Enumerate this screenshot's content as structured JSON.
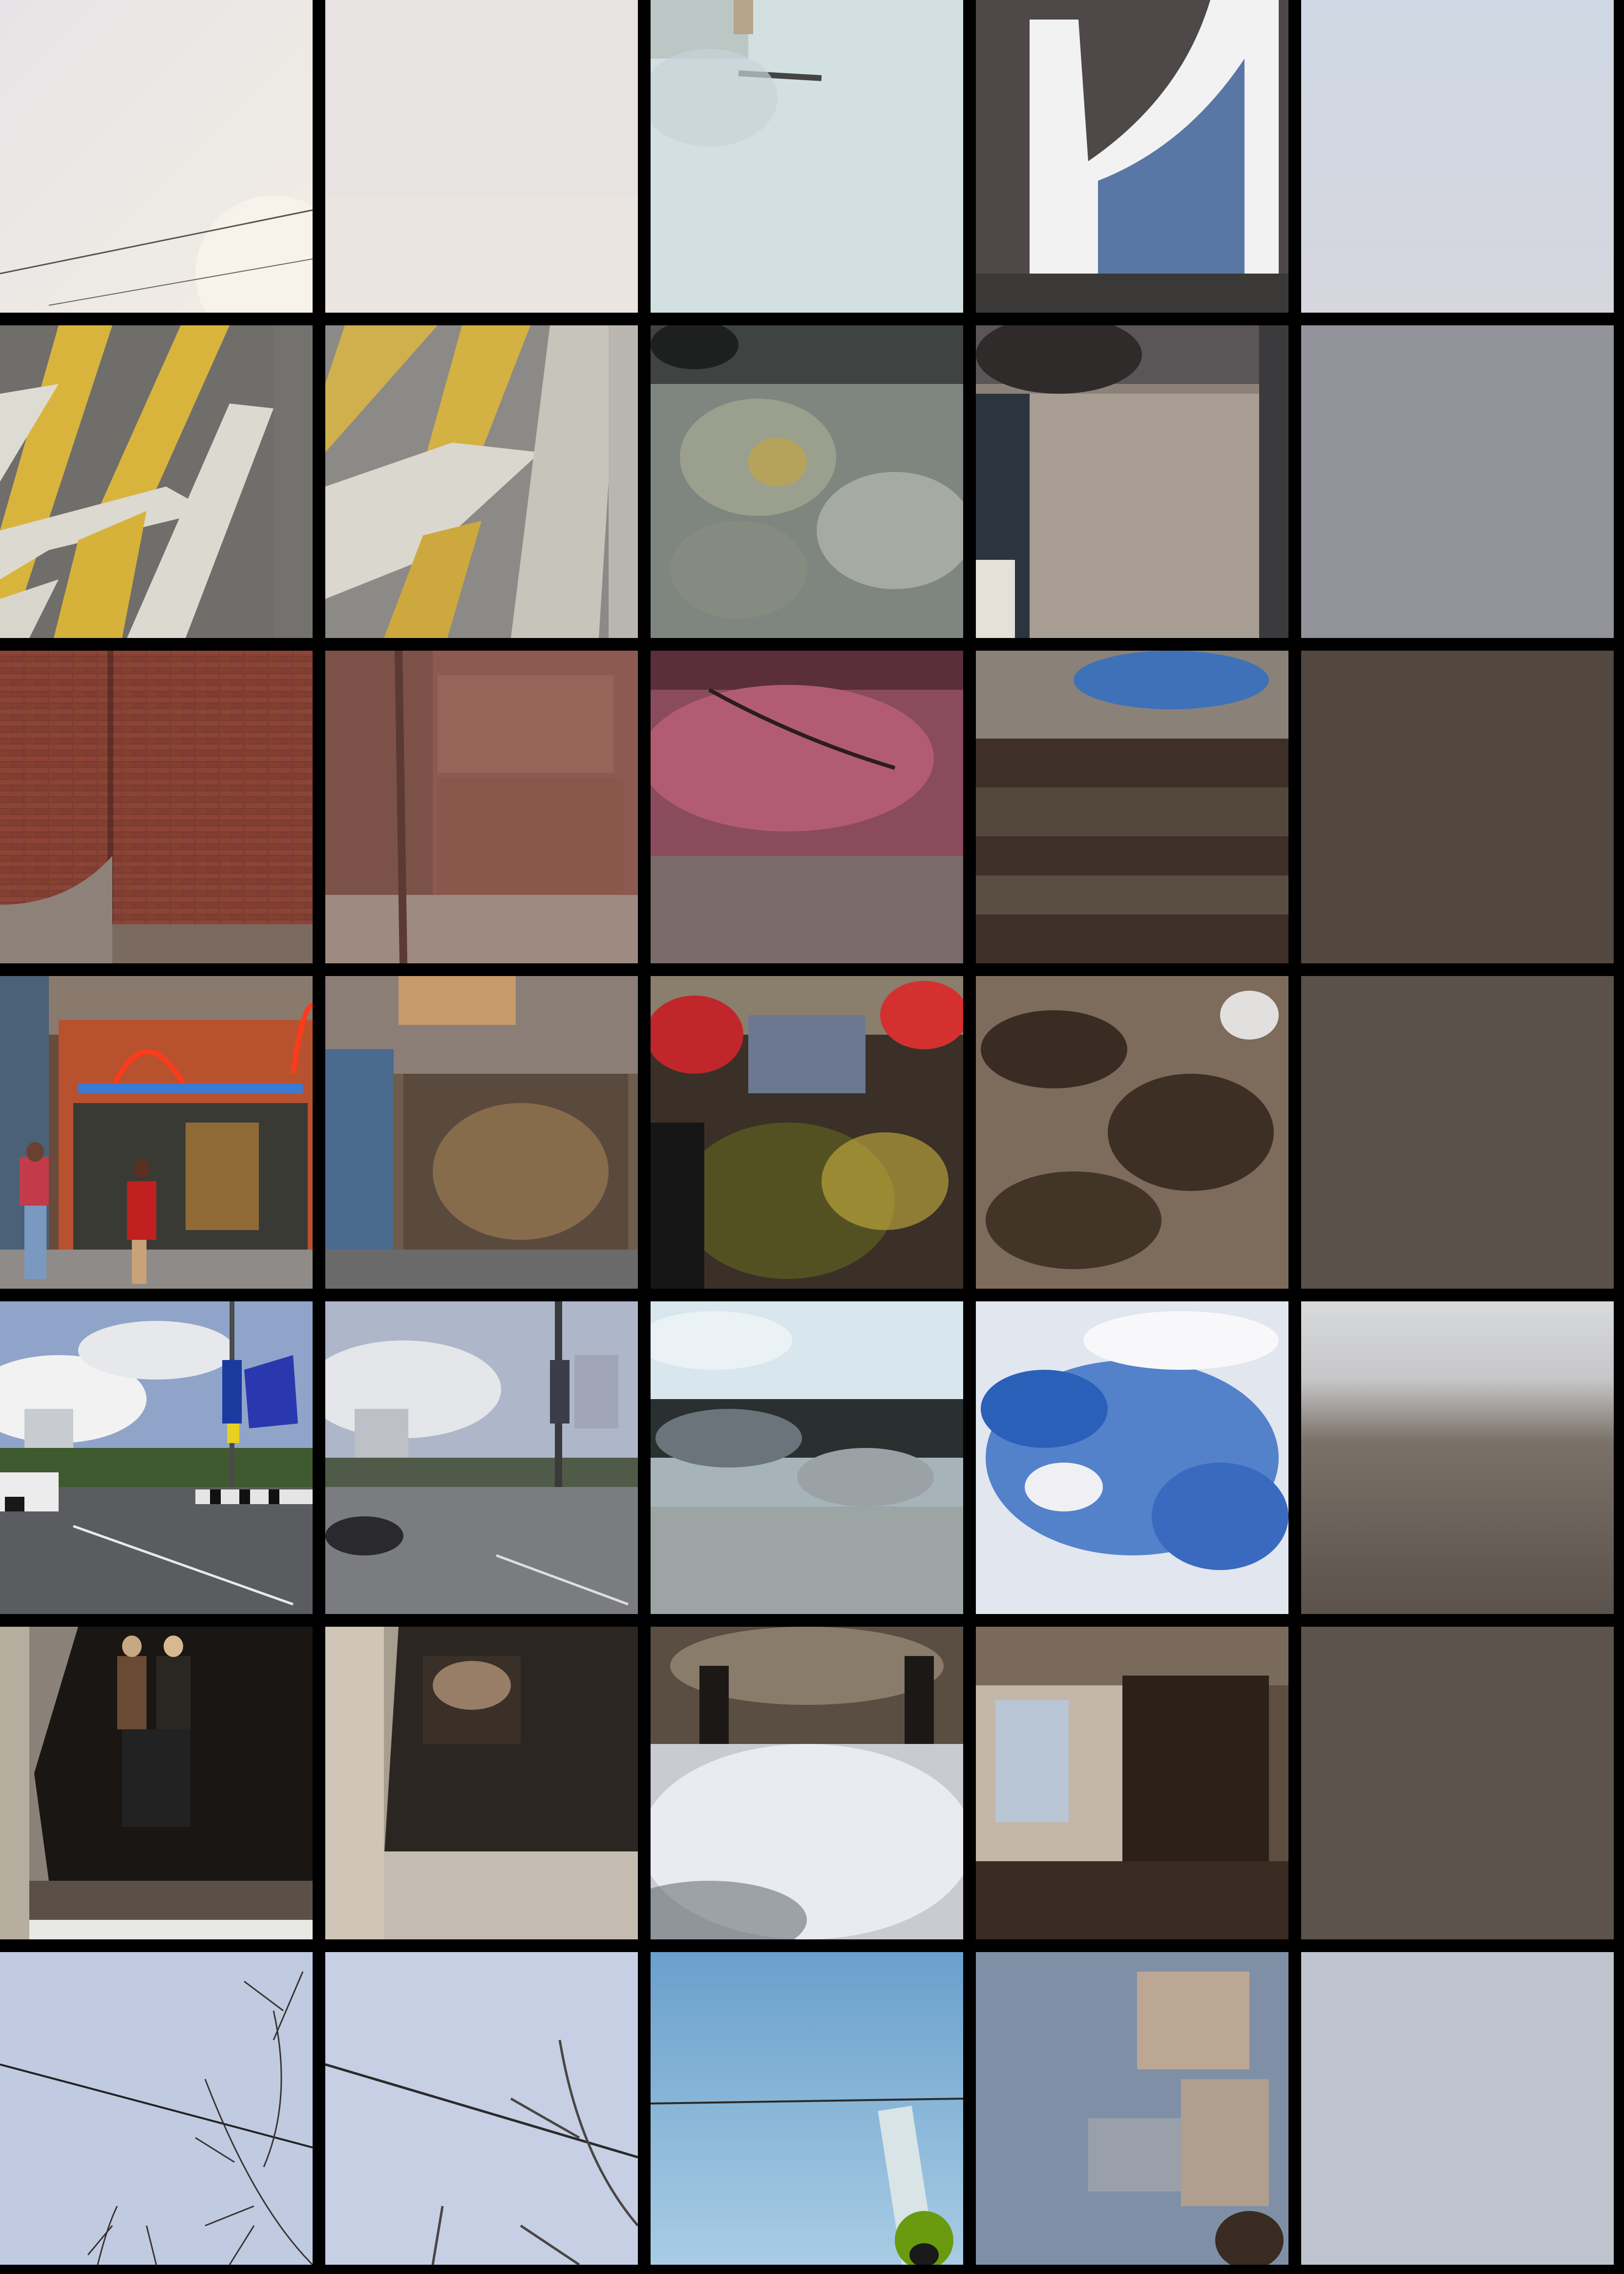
{
  "grid": {
    "rows": 7,
    "columns": 5,
    "background": "#000000",
    "row_subjects": [
      "sky-with-wires",
      "yellow-road-markings",
      "brick-wall",
      "shopfront-with-pedestrians",
      "city-street-with-billboard",
      "mannequins-in-shop-window",
      "branches-against-sky"
    ],
    "column_variants": [
      "original",
      "smooth-reconstruction",
      "distorted-reconstruction",
      "pixelated-reconstruction",
      "blurred-average"
    ]
  }
}
